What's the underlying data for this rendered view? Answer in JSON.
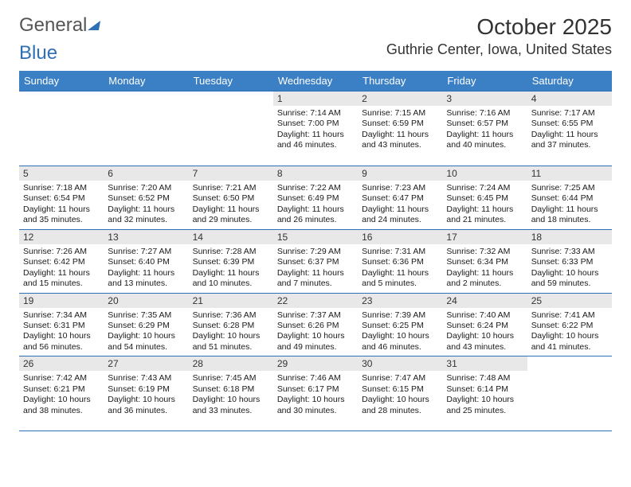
{
  "logo": {
    "text1": "General",
    "text2": "Blue"
  },
  "title": {
    "month": "October 2025",
    "location": "Guthrie Center, Iowa, United States"
  },
  "colors": {
    "header_bg": "#3b7fc4",
    "header_text": "#ffffff",
    "border": "#2f6fb5",
    "daynum_bg": "#e8e8e8",
    "logo_gray": "#555555",
    "logo_blue": "#2f6fb5",
    "body_text": "#1a1a1a"
  },
  "typography": {
    "title_fontsize": 28,
    "location_fontsize": 18,
    "header_fontsize": 13,
    "cell_fontsize": 10.5
  },
  "days": [
    "Sunday",
    "Monday",
    "Tuesday",
    "Wednesday",
    "Thursday",
    "Friday",
    "Saturday"
  ],
  "grid": [
    [
      {
        "blank": true
      },
      {
        "blank": true
      },
      {
        "blank": true
      },
      {
        "num": "1",
        "sunrise": "Sunrise: 7:14 AM",
        "sunset": "Sunset: 7:00 PM",
        "dl1": "Daylight: 11 hours",
        "dl2": "and 46 minutes."
      },
      {
        "num": "2",
        "sunrise": "Sunrise: 7:15 AM",
        "sunset": "Sunset: 6:59 PM",
        "dl1": "Daylight: 11 hours",
        "dl2": "and 43 minutes."
      },
      {
        "num": "3",
        "sunrise": "Sunrise: 7:16 AM",
        "sunset": "Sunset: 6:57 PM",
        "dl1": "Daylight: 11 hours",
        "dl2": "and 40 minutes."
      },
      {
        "num": "4",
        "sunrise": "Sunrise: 7:17 AM",
        "sunset": "Sunset: 6:55 PM",
        "dl1": "Daylight: 11 hours",
        "dl2": "and 37 minutes."
      }
    ],
    [
      {
        "num": "5",
        "sunrise": "Sunrise: 7:18 AM",
        "sunset": "Sunset: 6:54 PM",
        "dl1": "Daylight: 11 hours",
        "dl2": "and 35 minutes."
      },
      {
        "num": "6",
        "sunrise": "Sunrise: 7:20 AM",
        "sunset": "Sunset: 6:52 PM",
        "dl1": "Daylight: 11 hours",
        "dl2": "and 32 minutes."
      },
      {
        "num": "7",
        "sunrise": "Sunrise: 7:21 AM",
        "sunset": "Sunset: 6:50 PM",
        "dl1": "Daylight: 11 hours",
        "dl2": "and 29 minutes."
      },
      {
        "num": "8",
        "sunrise": "Sunrise: 7:22 AM",
        "sunset": "Sunset: 6:49 PM",
        "dl1": "Daylight: 11 hours",
        "dl2": "and 26 minutes."
      },
      {
        "num": "9",
        "sunrise": "Sunrise: 7:23 AM",
        "sunset": "Sunset: 6:47 PM",
        "dl1": "Daylight: 11 hours",
        "dl2": "and 24 minutes."
      },
      {
        "num": "10",
        "sunrise": "Sunrise: 7:24 AM",
        "sunset": "Sunset: 6:45 PM",
        "dl1": "Daylight: 11 hours",
        "dl2": "and 21 minutes."
      },
      {
        "num": "11",
        "sunrise": "Sunrise: 7:25 AM",
        "sunset": "Sunset: 6:44 PM",
        "dl1": "Daylight: 11 hours",
        "dl2": "and 18 minutes."
      }
    ],
    [
      {
        "num": "12",
        "sunrise": "Sunrise: 7:26 AM",
        "sunset": "Sunset: 6:42 PM",
        "dl1": "Daylight: 11 hours",
        "dl2": "and 15 minutes."
      },
      {
        "num": "13",
        "sunrise": "Sunrise: 7:27 AM",
        "sunset": "Sunset: 6:40 PM",
        "dl1": "Daylight: 11 hours",
        "dl2": "and 13 minutes."
      },
      {
        "num": "14",
        "sunrise": "Sunrise: 7:28 AM",
        "sunset": "Sunset: 6:39 PM",
        "dl1": "Daylight: 11 hours",
        "dl2": "and 10 minutes."
      },
      {
        "num": "15",
        "sunrise": "Sunrise: 7:29 AM",
        "sunset": "Sunset: 6:37 PM",
        "dl1": "Daylight: 11 hours",
        "dl2": "and 7 minutes."
      },
      {
        "num": "16",
        "sunrise": "Sunrise: 7:31 AM",
        "sunset": "Sunset: 6:36 PM",
        "dl1": "Daylight: 11 hours",
        "dl2": "and 5 minutes."
      },
      {
        "num": "17",
        "sunrise": "Sunrise: 7:32 AM",
        "sunset": "Sunset: 6:34 PM",
        "dl1": "Daylight: 11 hours",
        "dl2": "and 2 minutes."
      },
      {
        "num": "18",
        "sunrise": "Sunrise: 7:33 AM",
        "sunset": "Sunset: 6:33 PM",
        "dl1": "Daylight: 10 hours",
        "dl2": "and 59 minutes."
      }
    ],
    [
      {
        "num": "19",
        "sunrise": "Sunrise: 7:34 AM",
        "sunset": "Sunset: 6:31 PM",
        "dl1": "Daylight: 10 hours",
        "dl2": "and 56 minutes."
      },
      {
        "num": "20",
        "sunrise": "Sunrise: 7:35 AM",
        "sunset": "Sunset: 6:29 PM",
        "dl1": "Daylight: 10 hours",
        "dl2": "and 54 minutes."
      },
      {
        "num": "21",
        "sunrise": "Sunrise: 7:36 AM",
        "sunset": "Sunset: 6:28 PM",
        "dl1": "Daylight: 10 hours",
        "dl2": "and 51 minutes."
      },
      {
        "num": "22",
        "sunrise": "Sunrise: 7:37 AM",
        "sunset": "Sunset: 6:26 PM",
        "dl1": "Daylight: 10 hours",
        "dl2": "and 49 minutes."
      },
      {
        "num": "23",
        "sunrise": "Sunrise: 7:39 AM",
        "sunset": "Sunset: 6:25 PM",
        "dl1": "Daylight: 10 hours",
        "dl2": "and 46 minutes."
      },
      {
        "num": "24",
        "sunrise": "Sunrise: 7:40 AM",
        "sunset": "Sunset: 6:24 PM",
        "dl1": "Daylight: 10 hours",
        "dl2": "and 43 minutes."
      },
      {
        "num": "25",
        "sunrise": "Sunrise: 7:41 AM",
        "sunset": "Sunset: 6:22 PM",
        "dl1": "Daylight: 10 hours",
        "dl2": "and 41 minutes."
      }
    ],
    [
      {
        "num": "26",
        "sunrise": "Sunrise: 7:42 AM",
        "sunset": "Sunset: 6:21 PM",
        "dl1": "Daylight: 10 hours",
        "dl2": "and 38 minutes."
      },
      {
        "num": "27",
        "sunrise": "Sunrise: 7:43 AM",
        "sunset": "Sunset: 6:19 PM",
        "dl1": "Daylight: 10 hours",
        "dl2": "and 36 minutes."
      },
      {
        "num": "28",
        "sunrise": "Sunrise: 7:45 AM",
        "sunset": "Sunset: 6:18 PM",
        "dl1": "Daylight: 10 hours",
        "dl2": "and 33 minutes."
      },
      {
        "num": "29",
        "sunrise": "Sunrise: 7:46 AM",
        "sunset": "Sunset: 6:17 PM",
        "dl1": "Daylight: 10 hours",
        "dl2": "and 30 minutes."
      },
      {
        "num": "30",
        "sunrise": "Sunrise: 7:47 AM",
        "sunset": "Sunset: 6:15 PM",
        "dl1": "Daylight: 10 hours",
        "dl2": "and 28 minutes."
      },
      {
        "num": "31",
        "sunrise": "Sunrise: 7:48 AM",
        "sunset": "Sunset: 6:14 PM",
        "dl1": "Daylight: 10 hours",
        "dl2": "and 25 minutes."
      },
      {
        "blank": true
      }
    ]
  ]
}
